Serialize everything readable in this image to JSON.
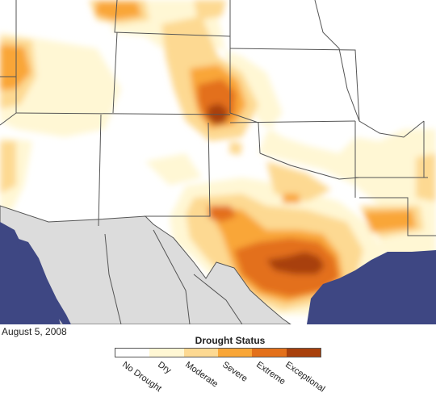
{
  "date": "August 5, 2008",
  "legend": {
    "title": "Drought Status",
    "categories": [
      {
        "label": "No Drought",
        "color": "#ffffff"
      },
      {
        "label": "Dry",
        "color": "#fff7d4"
      },
      {
        "label": "Moderate",
        "color": "#fdd992"
      },
      {
        "label": "Severe",
        "color": "#f9a637"
      },
      {
        "label": "Extreme",
        "color": "#e3701a"
      },
      {
        "label": "Exceptional",
        "color": "#a8400c"
      }
    ]
  },
  "colors": {
    "land_us": "#ffffff",
    "land_mexico": "#dcdcdc",
    "ocean": "#3e4783",
    "border": "#555555"
  }
}
